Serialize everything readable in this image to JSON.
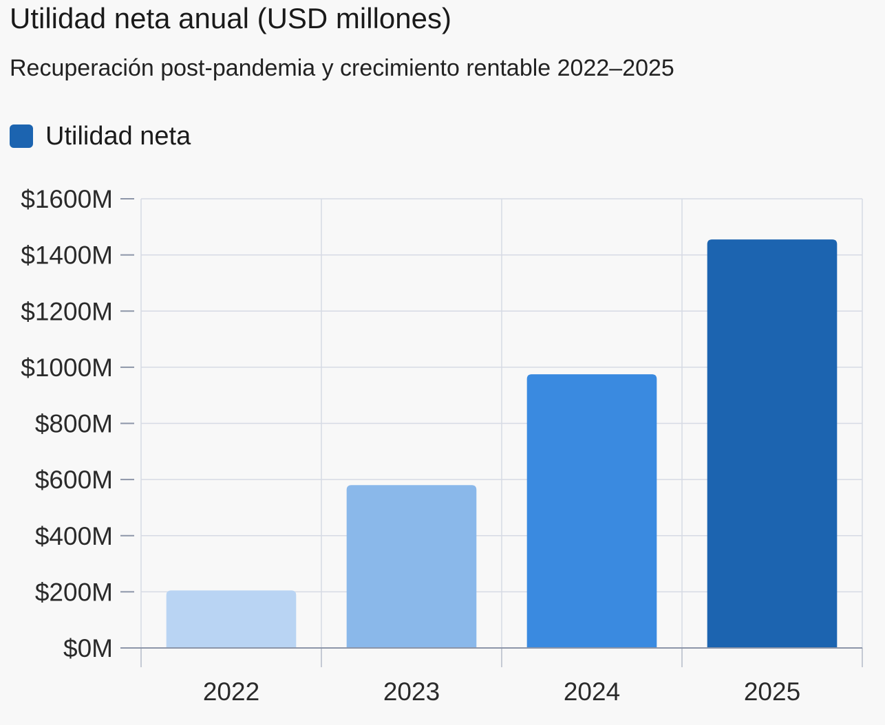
{
  "chart_data": {
    "type": "bar",
    "title": "Utilidad neta anual (USD millones)",
    "subtitle": "Recuperación post-pandemia y crecimiento rentable 2022–2025",
    "legend": "Utilidad neta",
    "legend_color": "#1c64b0",
    "categories": [
      "2022",
      "2023",
      "2024",
      "2025"
    ],
    "series": [
      {
        "name": "Utilidad neta",
        "values": [
          205,
          580,
          975,
          1455
        ]
      }
    ],
    "bar_colors": [
      "#b9d4f3",
      "#8ab8ea",
      "#3a8ae0",
      "#1c64b0"
    ],
    "ylim": [
      0,
      1600
    ],
    "yticks": [
      0,
      200,
      400,
      600,
      800,
      1000,
      1200,
      1400,
      1600
    ],
    "ytick_labels": [
      "$0M",
      "$200M",
      "$400M",
      "$600M",
      "$800M",
      "$1000M",
      "$1200M",
      "$1400M",
      "$1600M"
    ],
    "xlabel": "",
    "ylabel": "",
    "grid": true
  }
}
